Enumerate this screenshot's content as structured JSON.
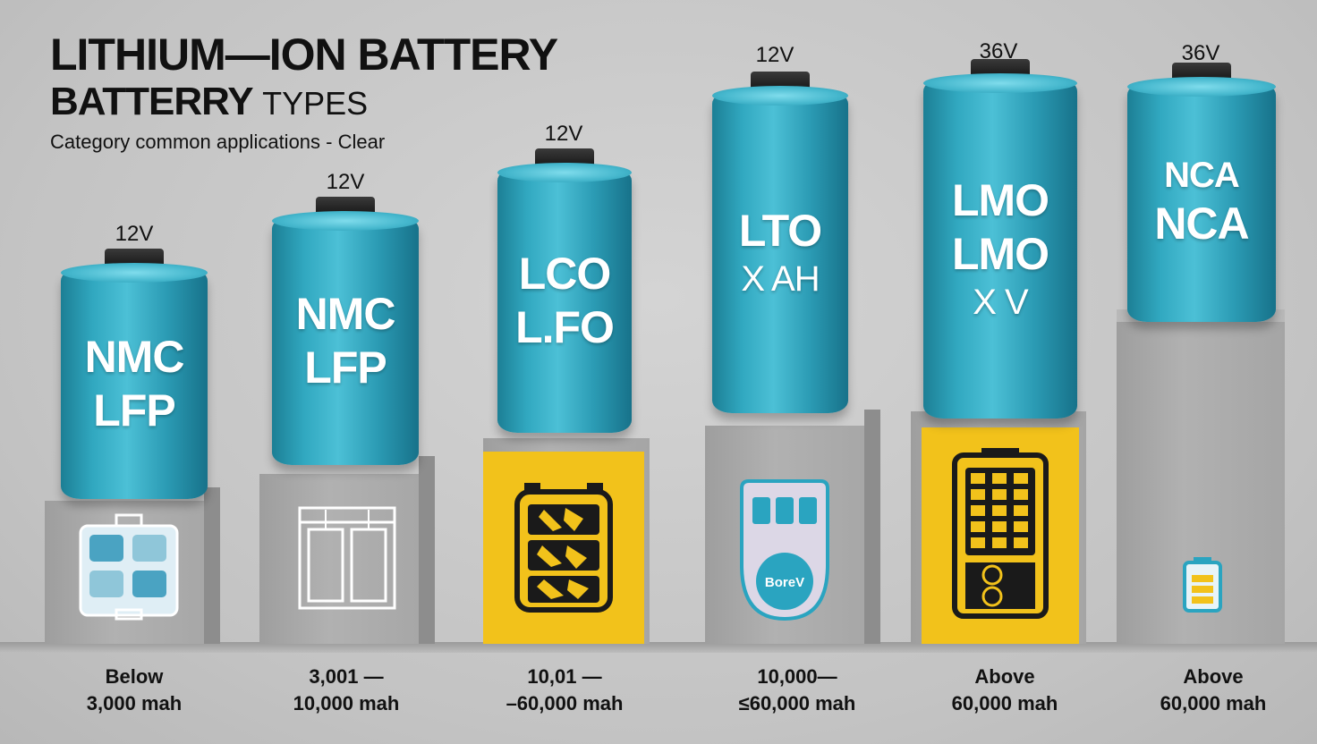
{
  "title": {
    "line1": "LITHIUM—ION BATTERY",
    "line2_bold": "BATTERRY",
    "line2_thin": "TYPES"
  },
  "subtitle": "Category common applications - Clear",
  "batteries": [
    {
      "voltage": "12V",
      "labels": [
        "NMC",
        "LFP"
      ],
      "capacity": [
        "Below",
        "3,000 mah"
      ],
      "panel": "gray",
      "icon": "battery-pack-icon"
    },
    {
      "voltage": "12V",
      "labels": [
        "NMC",
        "LFP"
      ],
      "capacity": [
        "3,001 —",
        "10,000 mah"
      ],
      "panel": "gray",
      "icon": "battery-rack-icon"
    },
    {
      "voltage": "12V",
      "labels": [
        "LCO",
        "L.FO"
      ],
      "capacity": [
        "10,01 —",
        "–60,000 mah"
      ],
      "panel": "yellow",
      "icon": "tool-battery-icon"
    },
    {
      "voltage": "12V",
      "labels": [
        "LTO",
        "X AH"
      ],
      "capacity": [
        "10,000—",
        "≤60,000 mah"
      ],
      "panel": "gray",
      "icon": "power-station-icon",
      "icon_text": "BoreV"
    },
    {
      "voltage": "36V",
      "labels": [
        "LMO",
        "LMO",
        "X V"
      ],
      "capacity": [
        "Above",
        "60,000 mah"
      ],
      "panel": "yellow",
      "icon": "ev-battery-icon"
    },
    {
      "voltage": "36V",
      "labels": [
        "NCA",
        "NCA"
      ],
      "capacity": [
        "Above",
        "60,000 mah"
      ],
      "panel": "gray",
      "icon": "small-battery-icon"
    }
  ],
  "colors": {
    "cell": "#31a8c0",
    "panel_yellow": "#f2c21b",
    "pedestal": "#a8a8a8",
    "text": "#111111"
  }
}
